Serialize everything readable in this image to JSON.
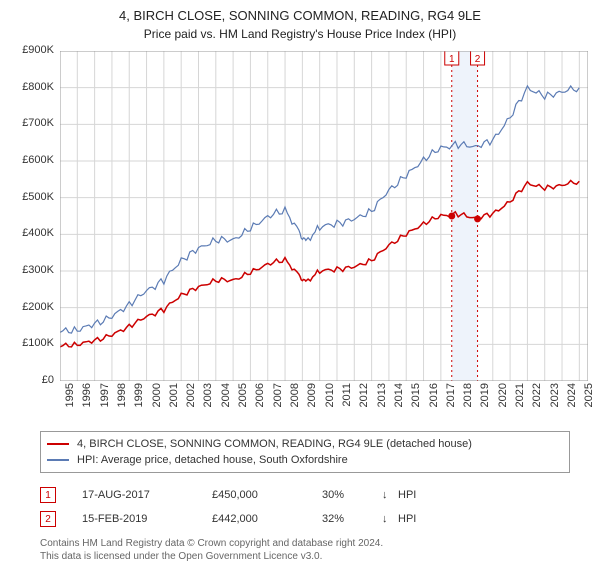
{
  "title": "4, BIRCH CLOSE, SONNING COMMON, READING, RG4 9LE",
  "subtitle": "Price paid vs. HM Land Registry's House Price Index (HPI)",
  "chart": {
    "type": "line",
    "background_color": "#ffffff",
    "grid_color": "#d6d6d6",
    "axes_color": "#999999",
    "text_color": "#333333",
    "label_fontsize": 11,
    "x_years": [
      1995,
      1996,
      1997,
      1998,
      1999,
      2000,
      2001,
      2002,
      2003,
      2004,
      2005,
      2006,
      2007,
      2008,
      2009,
      2010,
      2011,
      2012,
      2013,
      2014,
      2015,
      2016,
      2017,
      2018,
      2019,
      2020,
      2021,
      2022,
      2023,
      2024,
      2025
    ],
    "xlim": [
      1995,
      2025.5
    ],
    "y_ticks_k": [
      0,
      100,
      200,
      300,
      400,
      500,
      600,
      700,
      800,
      900
    ],
    "y_prefix": "£",
    "y_suffix": "K",
    "ylim_k": [
      0,
      900
    ],
    "series": [
      {
        "id": "property",
        "label": "4, BIRCH CLOSE, SONNING COMMON, READING, RG4 9LE (detached house)",
        "color": "#cc0000",
        "line_width": 1.5,
        "x": [
          1995,
          1996,
          1997,
          1998,
          1999,
          2000,
          2001,
          2002,
          2003,
          2004,
          2005,
          2006,
          2007,
          2008,
          2008.8,
          2009.2,
          2010,
          2011,
          2012,
          2013,
          2014,
          2015,
          2016,
          2017,
          2018,
          2019,
          2020,
          2021,
          2022,
          2023,
          2024,
          2025
        ],
        "y_k": [
          95,
          100,
          110,
          125,
          150,
          175,
          195,
          235,
          255,
          275,
          275,
          295,
          320,
          330,
          290,
          270,
          300,
          305,
          310,
          330,
          370,
          400,
          430,
          450,
          455,
          445,
          455,
          490,
          540,
          525,
          535,
          545
        ]
      },
      {
        "id": "hpi",
        "label": "HPI: Average price, detached house, South Oxfordshire",
        "color": "#5b7bb4",
        "line_width": 1.2,
        "x": [
          1995,
          1996,
          1997,
          1998,
          1999,
          2000,
          2001,
          2002,
          2003,
          2004,
          2005,
          2006,
          2007,
          2008,
          2008.8,
          2009.2,
          2010,
          2011,
          2012,
          2013,
          2014,
          2015,
          2016,
          2017,
          2018,
          2019,
          2020,
          2021,
          2022,
          2023,
          2024,
          2025
        ],
        "y_k": [
          135,
          140,
          155,
          175,
          210,
          245,
          275,
          330,
          360,
          385,
          385,
          415,
          450,
          465,
          410,
          380,
          420,
          430,
          440,
          465,
          520,
          560,
          605,
          635,
          645,
          640,
          655,
          720,
          800,
          775,
          790,
          800
        ]
      }
    ],
    "transaction_markers": [
      {
        "n": "1",
        "x": 2017.63,
        "y_k": 450,
        "band_from_x": 2017.63,
        "band_to_x": 2019.12,
        "band_color": "#eef3fb"
      },
      {
        "n": "2",
        "x": 2019.12,
        "y_k": 442
      }
    ],
    "marker_style": {
      "box_border": "#cc0000",
      "box_text_color": "#cc0000",
      "dash_color": "#cc0000",
      "point_fill": "#cc0000",
      "point_radius": 3.5
    },
    "sale_marker_boxes": [
      {
        "n": "1",
        "x": 2017.63
      },
      {
        "n": "2",
        "x": 2019.12
      }
    ]
  },
  "legend_border_color": "#999999",
  "transactions": [
    {
      "n": "1",
      "date": "17-AUG-2017",
      "price": "£450,000",
      "diff": "30%",
      "arrow": "↓",
      "vs": "HPI"
    },
    {
      "n": "2",
      "date": "15-FEB-2019",
      "price": "£442,000",
      "diff": "32%",
      "arrow": "↓",
      "vs": "HPI"
    }
  ],
  "footer_line1": "Contains HM Land Registry data © Crown copyright and database right 2024.",
  "footer_line2": "This data is licensed under the Open Government Licence v3.0."
}
